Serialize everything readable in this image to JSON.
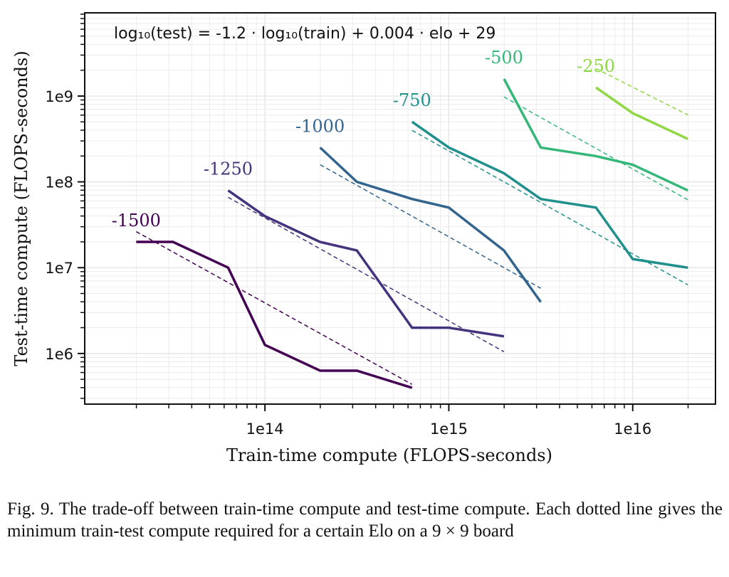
{
  "chart_data": {
    "type": "line",
    "xlabel": "Train-time compute (FLOPS-seconds)",
    "ylabel": "Test-time compute (FLOPS-seconds)",
    "xscale": "log",
    "yscale": "log",
    "xlim_log10": [
      13.02,
      16.45
    ],
    "ylim_log10": [
      5.41,
      9.97
    ],
    "x_ticks": [
      {
        "log": 14,
        "label": "1e14"
      },
      {
        "log": 15,
        "label": "1e15"
      },
      {
        "log": 16,
        "label": "1e16"
      }
    ],
    "y_ticks": [
      {
        "log": 6,
        "label": "1e6"
      },
      {
        "log": 7,
        "label": "1e7"
      },
      {
        "log": 8,
        "label": "1e8"
      },
      {
        "log": 9,
        "label": "1e9"
      }
    ],
    "grid": true,
    "annotation": "log₁₀(test) = -1.2 · log₁₀(train) + 0.004 · elo + 29",
    "series": [
      {
        "name": "-1500",
        "color": "#440154",
        "x_log10": [
          13.3,
          13.5,
          13.8,
          14.0,
          14.3,
          14.5,
          14.8
        ],
        "y_log10": [
          7.3,
          7.3,
          7.0,
          6.1,
          5.8,
          5.8,
          5.6
        ],
        "fit_log10": [
          [
            13.3,
            7.42
          ],
          [
            14.8,
            5.64
          ]
        ]
      },
      {
        "name": "-1250",
        "color": "#46337e",
        "x_log10": [
          13.8,
          14.0,
          14.3,
          14.5,
          14.8,
          15.0,
          15.3
        ],
        "y_log10": [
          7.9,
          7.6,
          7.3,
          7.2,
          6.3,
          6.3,
          6.2
        ],
        "fit_log10": [
          [
            13.8,
            7.82
          ],
          [
            15.3,
            6.02
          ]
        ]
      },
      {
        "name": "-1000",
        "color": "#32648e",
        "x_log10": [
          14.3,
          14.5,
          14.8,
          15.0,
          15.3,
          15.5
        ],
        "y_log10": [
          8.4,
          8.0,
          7.8,
          7.7,
          7.2,
          6.6
        ],
        "fit_log10": [
          [
            14.3,
            8.2
          ],
          [
            15.5,
            6.76
          ]
        ]
      },
      {
        "name": "-750",
        "color": "#21908d",
        "x_log10": [
          14.8,
          15.0,
          15.3,
          15.5,
          15.8,
          16.0,
          16.3
        ],
        "y_log10": [
          8.7,
          8.4,
          8.1,
          7.8,
          7.7,
          7.1,
          7.0
        ],
        "fit_log10": [
          [
            14.8,
            8.6
          ],
          [
            16.3,
            6.8
          ]
        ]
      },
      {
        "name": "-500",
        "color": "#35b779",
        "x_log10": [
          15.3,
          15.5,
          15.8,
          16.0,
          16.3
        ],
        "y_log10": [
          9.2,
          8.4,
          8.3,
          8.2,
          7.9
        ],
        "fit_log10": [
          [
            15.3,
            8.99
          ],
          [
            16.3,
            7.79
          ]
        ]
      },
      {
        "name": "-250",
        "color": "#8fd744",
        "x_log10": [
          15.8,
          16.0,
          16.3
        ],
        "y_log10": [
          9.1,
          8.8,
          8.5
        ],
        "fit_log10": [
          [
            15.8,
            9.32
          ],
          [
            16.3,
            8.78
          ]
        ]
      }
    ]
  },
  "caption": "Fig. 9.  The trade-off between train-time compute and test-time compute. Each dotted line gives the minimum train-test compute required for a certain Elo on a 9 × 9 board"
}
